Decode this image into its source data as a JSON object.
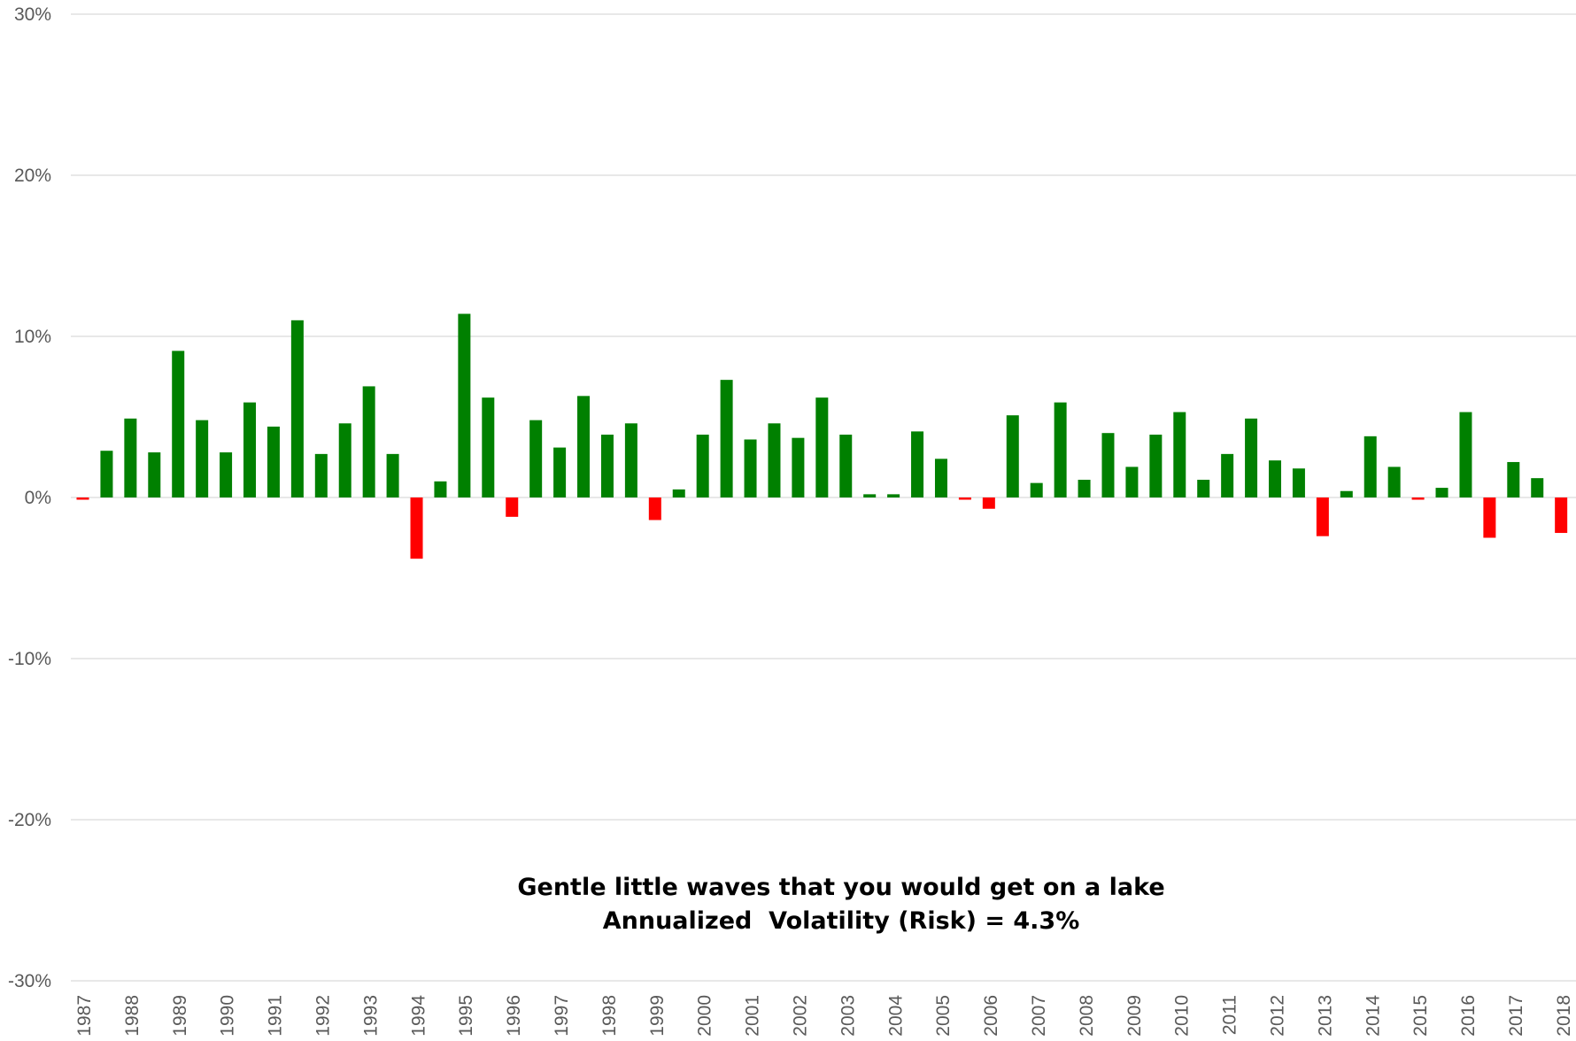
{
  "chart_data": {
    "type": "bar",
    "title": "",
    "xlabel": "",
    "ylabel": "",
    "ylim": [
      -30,
      30
    ],
    "y_ticks": [
      30,
      20,
      10,
      0,
      -10,
      -20,
      -30
    ],
    "y_tick_labels": [
      "30%",
      "20%",
      "10%",
      "0%",
      "-10%",
      "-20%",
      "-30%"
    ],
    "x_tick_labels": [
      "1987",
      "1988",
      "1989",
      "1990",
      "1991",
      "1992",
      "1993",
      "1994",
      "1995",
      "1996",
      "1997",
      "1998",
      "1999",
      "2000",
      "2001",
      "2002",
      "2003",
      "2004",
      "2005",
      "2006",
      "2007",
      "2008",
      "2009",
      "2010",
      "2011",
      "2012",
      "2013",
      "2014",
      "2015",
      "2016",
      "2017",
      "2018"
    ],
    "grid": true,
    "legend": "none",
    "colors": {
      "positive": "#008000",
      "negative": "#ff0000",
      "grid": "#d9d9d9",
      "tick_text": "#595959"
    },
    "values": [
      -0.1,
      2.9,
      4.9,
      2.8,
      9.1,
      4.8,
      2.8,
      5.9,
      4.4,
      11.0,
      2.7,
      4.6,
      6.9,
      2.7,
      -3.8,
      1.0,
      11.4,
      6.2,
      -1.2,
      4.8,
      3.1,
      6.3,
      3.9,
      4.6,
      -1.4,
      0.5,
      3.9,
      7.3,
      3.6,
      4.6,
      3.7,
      6.2,
      3.9,
      0.2,
      0.2,
      4.1,
      2.4,
      -0.1,
      -0.7,
      5.1,
      0.9,
      5.9,
      1.1,
      4.0,
      1.9,
      3.9,
      5.3,
      1.1,
      2.7,
      4.9,
      2.3,
      1.8,
      -2.4,
      0.4,
      3.8,
      1.9,
      -0.1,
      0.6,
      5.3,
      -2.5,
      2.2,
      1.2,
      -2.2
    ],
    "annotations": [
      "Gentle little waves that you would get on a lake",
      "Annualized  Volatility (Risk) = 4.3%"
    ]
  }
}
